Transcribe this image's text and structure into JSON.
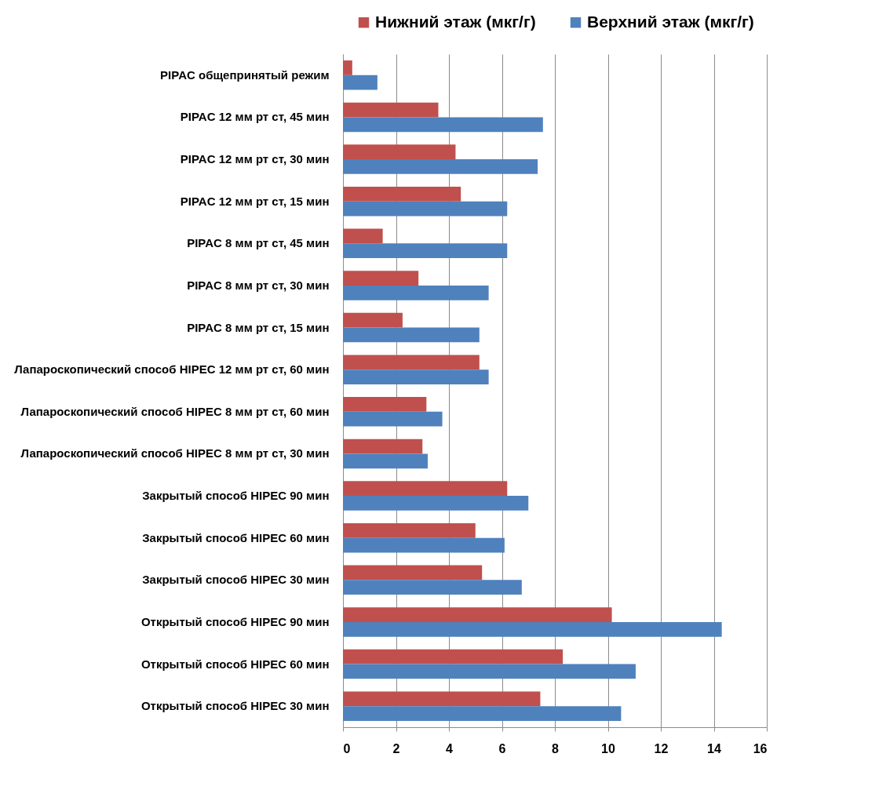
{
  "chart_data": {
    "type": "bar",
    "orientation": "horizontal",
    "categories": [
      "PIPAC  общепринятый режим",
      "PIPAC 12 мм рт ст,  45 мин",
      "PIPAC 12 мм рт ст,  30 мин",
      "PIPAC 12 мм рт ст,  15 мин",
      "PIPAC 8 мм рт ст,  45 мин",
      "PIPAC 8 мм рт ст,  30 мин",
      "PIPAC 8 мм рт ст,  15 мин",
      "Лапароскопический способ HIPEC 12 мм рт ст,  60 мин",
      "Лапароскопический способ HIPEC 8 мм рт ст, 60 мин",
      "Лапароскопический способ HIPEC 8 мм рт ст,  30 мин",
      "Закрытый способ HIPEC 90 мин",
      "Закрытый способ HIPEC 60 мин",
      "Закрытый способ HIPEC 30 мин",
      "Открытый способ HIPEC  90 мин",
      "Открытый способ HIPEC 60 мин",
      "Открытый способ HIPEC 30 мин"
    ],
    "series": [
      {
        "name": "Нижний этаж (мкг/г)",
        "color": "#c0504d",
        "values": [
          0.35,
          3.6,
          4.25,
          4.45,
          1.5,
          2.85,
          2.25,
          5.15,
          3.15,
          3.0,
          6.2,
          5.0,
          5.25,
          10.15,
          8.3,
          7.45
        ]
      },
      {
        "name": "Верхний этаж (мкг/г)",
        "color": "#4f81bd",
        "values": [
          1.3,
          7.55,
          7.35,
          6.2,
          6.2,
          5.5,
          5.15,
          5.5,
          3.75,
          3.2,
          7.0,
          6.1,
          6.75,
          14.3,
          11.05,
          10.5
        ]
      }
    ],
    "xlim": [
      0,
      16
    ],
    "xticks": [
      0,
      2,
      4,
      6,
      8,
      10,
      12,
      14,
      16
    ],
    "grid": "x",
    "legend": "top"
  }
}
